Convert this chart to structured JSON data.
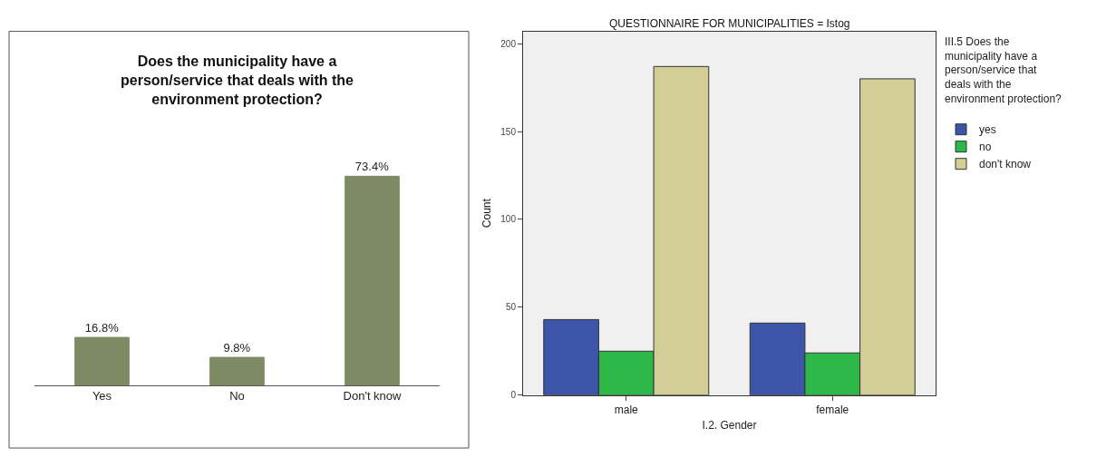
{
  "chart_data": [
    {
      "type": "bar",
      "title": "Does the municipality have a person/service that deals with the environment protection?",
      "categories": [
        "Yes",
        "No",
        "Don't know"
      ],
      "values": [
        16.8,
        9.8,
        73.4
      ],
      "value_labels": [
        "16.8%",
        "9.8%",
        "73.4%"
      ],
      "color": "#7d8a63",
      "legend": false
    },
    {
      "type": "bar",
      "title": "QUESTIONNAIRE FOR MUNICIPALITIES = Istog",
      "xlabel": "I.2. Gender",
      "ylabel": "Count",
      "legend_title": "III.5 Does the municipality have a person/service that deals with the environment protection?",
      "categories": [
        "male",
        "female"
      ],
      "series": [
        {
          "name": "yes",
          "color": "#3d55a8",
          "values": [
            43,
            41
          ]
        },
        {
          "name": "no",
          "color": "#2fb84a",
          "values": [
            25,
            24
          ]
        },
        {
          "name": "don't know",
          "color": "#d3cd96",
          "values": [
            187,
            180
          ]
        }
      ],
      "ylim": [
        0,
        207
      ],
      "yticks": [
        0,
        50,
        100,
        150,
        200
      ],
      "grid": false,
      "legend": "right"
    }
  ]
}
